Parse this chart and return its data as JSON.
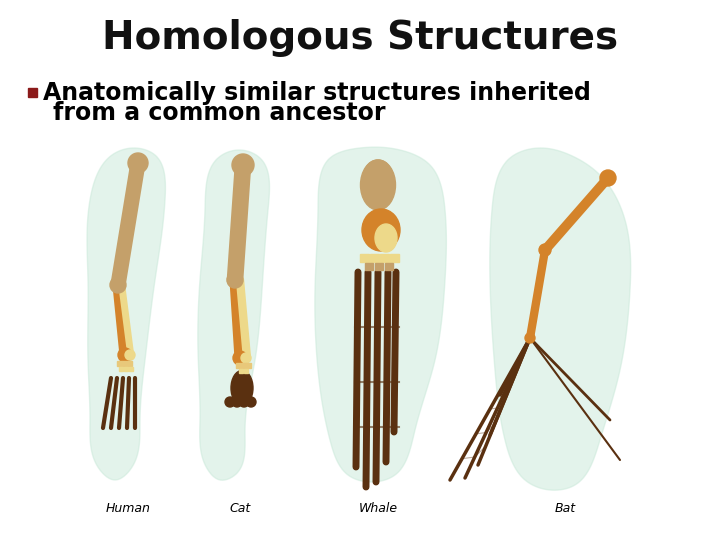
{
  "title": "Homologous Structures",
  "bullet_marker": "■",
  "bullet_text_line1": "Anatomically similar structures inherited",
  "bullet_text_line2": "from a common ancestor",
  "bullet_color": "#8B1A1A",
  "title_fontsize": 28,
  "bullet_fontsize": 17,
  "background_color": "#ffffff",
  "title_color": "#111111",
  "text_color": "#000000",
  "labels": [
    "Human",
    "Cat",
    "Whale",
    "Bat"
  ],
  "label_fontsize": 9,
  "blob_color": "#c8e8d8",
  "bone_tan": "#C4A06A",
  "bone_orange": "#D4832A",
  "bone_cream": "#EDD98A",
  "bone_dark": "#5A3010",
  "bone_light": "#E8C87A",
  "fig_width": 7.2,
  "fig_height": 5.4,
  "dpi": 100
}
